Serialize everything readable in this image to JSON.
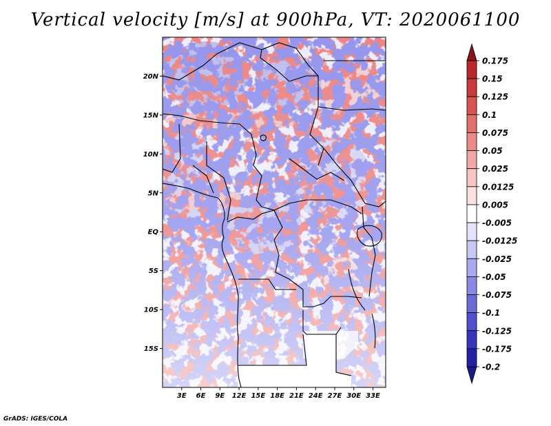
{
  "title": "Vertical velocity [m/s] at 900hPa, VT: 2020061100",
  "credit": "GrADS: IGES/COLA",
  "map": {
    "lon_range": [
      0,
      35
    ],
    "lat_range": [
      -20,
      25
    ],
    "lat_ticks": [
      {
        "lat": 20,
        "label": "20N"
      },
      {
        "lat": 15,
        "label": "15N"
      },
      {
        "lat": 10,
        "label": "10N"
      },
      {
        "lat": 5,
        "label": "5N"
      },
      {
        "lat": 0,
        "label": "EQ"
      },
      {
        "lat": -5,
        "label": "5S"
      },
      {
        "lat": -10,
        "label": "10S"
      },
      {
        "lat": -15,
        "label": "15S"
      }
    ],
    "lon_ticks": [
      {
        "lon": 3,
        "label": "3E"
      },
      {
        "lon": 6,
        "label": "6E"
      },
      {
        "lon": 9,
        "label": "9E"
      },
      {
        "lon": 12,
        "label": "12E"
      },
      {
        "lon": 15,
        "label": "15E"
      },
      {
        "lon": 18,
        "label": "18E"
      },
      {
        "lon": 21,
        "label": "21E"
      },
      {
        "lon": 24,
        "label": "24E"
      },
      {
        "lon": 27,
        "label": "27E"
      },
      {
        "lon": 30,
        "label": "30E"
      },
      {
        "lon": 33,
        "label": "33E"
      }
    ]
  },
  "colorbar": {
    "levels": [
      {
        "label": "0.175",
        "color": "#a51e22"
      },
      {
        "label": "0.15",
        "color": "#b8282c"
      },
      {
        "label": "0.125",
        "color": "#c93a3c"
      },
      {
        "label": "0.1",
        "color": "#d75452"
      },
      {
        "label": "0.075",
        "color": "#e16f6b"
      },
      {
        "label": "0.05",
        "color": "#ea8a86"
      },
      {
        "label": "0.025",
        "color": "#f2a9a5"
      },
      {
        "label": "0.0125",
        "color": "#f7c6c3"
      },
      {
        "label": "0.005",
        "color": "#fbe1df"
      },
      {
        "label": "-0.005",
        "color": "#ffffff"
      },
      {
        "label": "-0.0125",
        "color": "#e3e3fb"
      },
      {
        "label": "-0.025",
        "color": "#c8c8f5"
      },
      {
        "label": "-0.05",
        "color": "#a9a9ee"
      },
      {
        "label": "-0.075",
        "color": "#8a8ae4"
      },
      {
        "label": "-0.1",
        "color": "#6c6cd9"
      },
      {
        "label": "-0.125",
        "color": "#5050cc"
      },
      {
        "label": "-0.175",
        "color": "#3636bb"
      },
      {
        "label": "-0.2",
        "color": "#2222a4"
      }
    ],
    "top_tip_color": "#8c1418",
    "bottom_tip_color": "#1a1a8c"
  }
}
